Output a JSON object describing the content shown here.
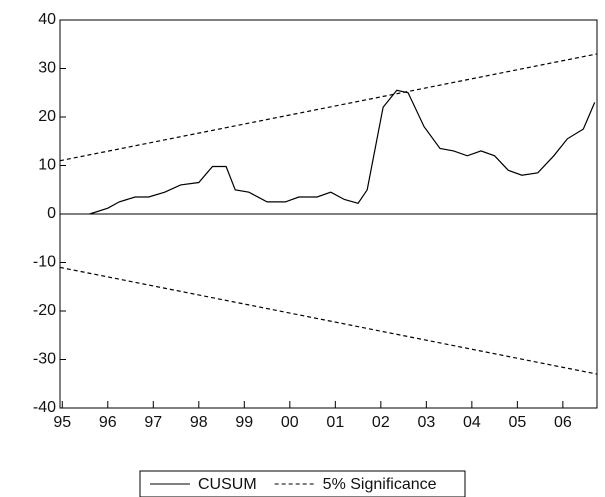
{
  "chart_data": {
    "type": "line",
    "series": [
      {
        "name": "CUSUM",
        "color": "#000000",
        "dash": "none",
        "x": [
          1995.6,
          1996.0,
          1996.25,
          1996.6,
          1996.9,
          1997.25,
          1997.6,
          1998.0,
          1998.3,
          1998.6,
          1998.8,
          1999.1,
          1999.5,
          1999.9,
          2000.2,
          2000.6,
          2000.9,
          2001.2,
          2001.5,
          2001.7,
          2002.05,
          2002.35,
          2002.6,
          2002.95,
          2003.3,
          2003.6,
          2003.9,
          2004.2,
          2004.5,
          2004.8,
          2005.1,
          2005.45,
          2005.8,
          2006.1,
          2006.45,
          2006.7
        ],
        "values": [
          0,
          1.2,
          2.5,
          3.5,
          3.5,
          4.5,
          6,
          6.5,
          9.8,
          9.8,
          5,
          4.5,
          2.5,
          2.5,
          3.5,
          3.5,
          4.5,
          3,
          2.2,
          5,
          22,
          25.5,
          25,
          18,
          13.5,
          13,
          12,
          13,
          12,
          9,
          8,
          8.5,
          12,
          15.5,
          17.5,
          23
        ]
      },
      {
        "name": "5% Significance",
        "color": "#000000",
        "dash": "4 3",
        "x": [
          1994.95,
          2006.75
        ],
        "values": [
          11,
          33
        ]
      },
      {
        "name": "5% Significance",
        "color": "#000000",
        "dash": "4 3",
        "legend": false,
        "x": [
          1994.95,
          2006.75
        ],
        "values": [
          -11,
          -33
        ]
      }
    ],
    "reference_line": 0,
    "xlim": [
      1994.95,
      2006.75
    ],
    "xticks": [
      {
        "value": 1995,
        "label": "95"
      },
      {
        "value": 1996,
        "label": "96"
      },
      {
        "value": 1997,
        "label": "97"
      },
      {
        "value": 1998,
        "label": "98"
      },
      {
        "value": 1999,
        "label": "99"
      },
      {
        "value": 2000,
        "label": "00"
      },
      {
        "value": 2001,
        "label": "01"
      },
      {
        "value": 2002,
        "label": "02"
      },
      {
        "value": 2003,
        "label": "03"
      },
      {
        "value": 2004,
        "label": "04"
      },
      {
        "value": 2005,
        "label": "05"
      },
      {
        "value": 2006,
        "label": "06"
      }
    ],
    "ylim": [
      -40,
      40
    ],
    "yticks": [
      -40,
      -30,
      -20,
      -10,
      0,
      10,
      20,
      30,
      40
    ]
  }
}
